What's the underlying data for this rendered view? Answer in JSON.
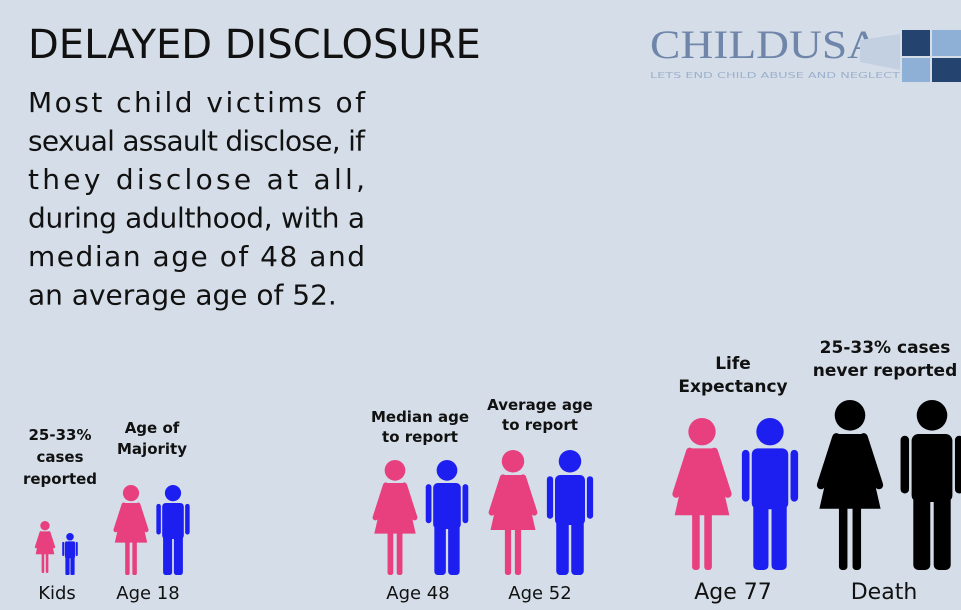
{
  "header": {
    "title": "DELAYED DISCLOSURE"
  },
  "logo": {
    "name": "CHILDUSA",
    "tagline": "LETS END CHILD ABUSE AND NEGLECT"
  },
  "paragraph": {
    "lines": [
      "Most child victims of",
      "sexual assault disclose, if",
      "they disclose at all,",
      "during adulthood, with a",
      "median age of 48 and",
      "an average age of 52."
    ]
  },
  "groups": [
    {
      "caption": [
        "25-33%",
        "cases",
        "reported"
      ],
      "label": "Kids"
    },
    {
      "caption": [
        "Age of",
        "Majority"
      ],
      "label": "Age 18"
    },
    {
      "caption": [
        "Median age",
        "to report"
      ],
      "label": "Age 48"
    },
    {
      "caption": [
        "Average age",
        "to report"
      ],
      "label": "Age 52"
    },
    {
      "caption": [
        "Life",
        "Expectancy"
      ],
      "label": "Age 77"
    },
    {
      "caption": [
        "25-33% cases",
        "never reported"
      ],
      "label": "Death"
    }
  ]
}
